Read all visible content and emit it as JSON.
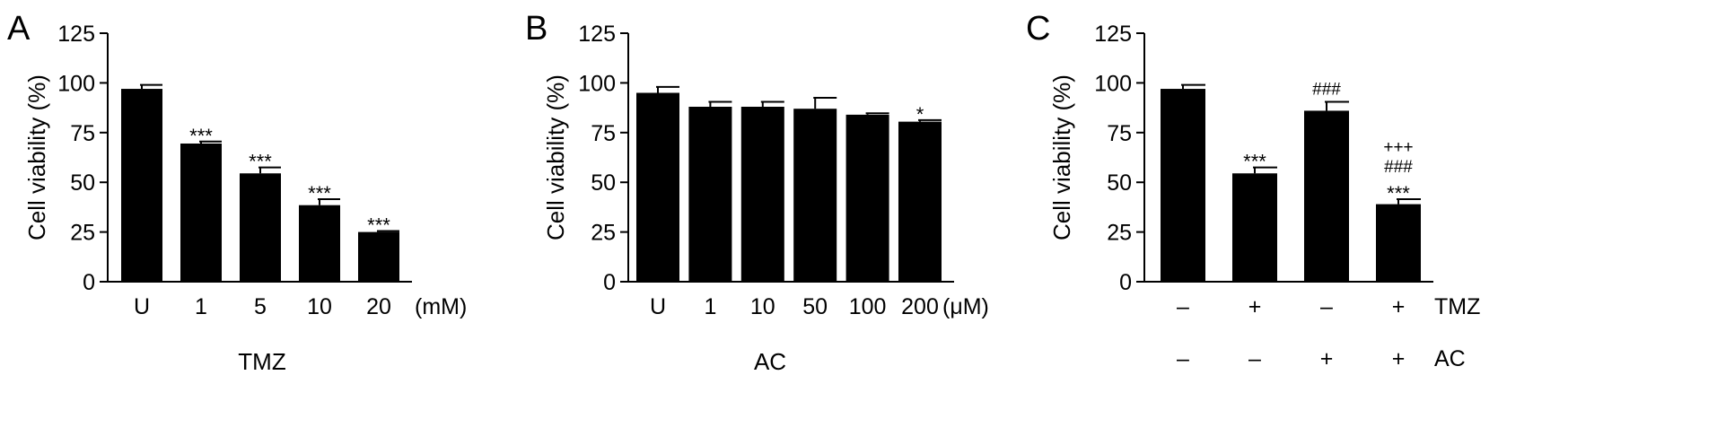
{
  "chart_data": [
    {
      "type": "bar",
      "panel": "A",
      "ylabel": "Cell viability (%)",
      "ylim": [
        0,
        125
      ],
      "yticks": [
        0,
        25,
        50,
        75,
        100,
        125
      ],
      "categories": [
        "U",
        "1",
        "5",
        "10",
        "20"
      ],
      "unit": "(mM)",
      "xlabel": "TMZ",
      "values": [
        97,
        69.5,
        54.5,
        38.5,
        25
      ],
      "errors": [
        2,
        1,
        3,
        3,
        0.5
      ],
      "annotations": [
        [],
        [
          "***"
        ],
        [
          "***"
        ],
        [
          "***"
        ],
        [
          "***"
        ]
      ]
    },
    {
      "type": "bar",
      "panel": "B",
      "ylabel": "Cell viability (%)",
      "ylim": [
        0,
        125
      ],
      "yticks": [
        0,
        25,
        50,
        75,
        100,
        125
      ],
      "categories": [
        "U",
        "1",
        "10",
        "50",
        "100",
        "200"
      ],
      "unit": "(μM)",
      "xlabel": "AC",
      "values": [
        95,
        88,
        88,
        87,
        84,
        80.5
      ],
      "errors": [
        3,
        2.5,
        2.5,
        5.5,
        0.7,
        0.8
      ],
      "annotations": [
        [],
        [],
        [],
        [],
        [],
        [
          "*"
        ]
      ]
    },
    {
      "type": "bar",
      "panel": "C",
      "ylabel": "Cell viability (%)",
      "ylim": [
        0,
        125
      ],
      "yticks": [
        0,
        25,
        50,
        75,
        100,
        125
      ],
      "categories": [
        "",
        "",
        "",
        ""
      ],
      "unit": "",
      "xlabel": "",
      "values": [
        97,
        54.5,
        86,
        39
      ],
      "errors": [
        2,
        3,
        4.5,
        2.5
      ],
      "annotations": [
        [],
        [
          "***"
        ],
        [
          "###"
        ],
        [
          "***",
          "###",
          "+++"
        ]
      ],
      "condition_rows": [
        {
          "label": "TMZ",
          "signs": [
            "–",
            "+",
            "–",
            "+"
          ]
        },
        {
          "label": "AC",
          "signs": [
            "–",
            "–",
            "+",
            "+"
          ]
        }
      ]
    }
  ]
}
